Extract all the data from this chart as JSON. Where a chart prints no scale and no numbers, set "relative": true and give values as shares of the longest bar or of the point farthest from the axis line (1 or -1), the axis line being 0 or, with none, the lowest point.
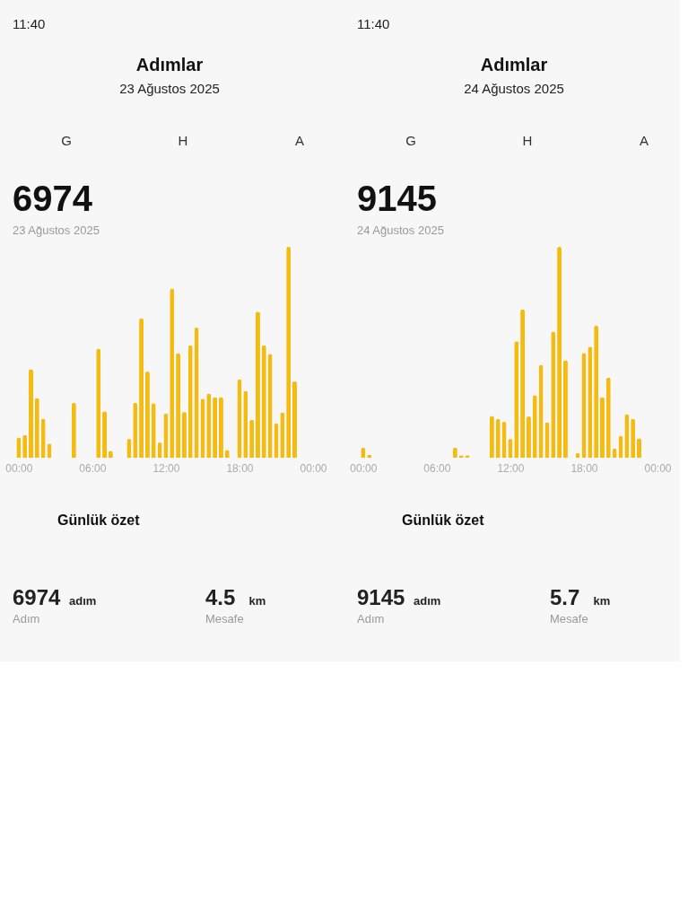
{
  "chart_data": [
    {
      "type": "bar",
      "title": "Adımlar",
      "subtitle": "23 Ağustos 2025",
      "relative": true,
      "x": [
        0,
        0.5,
        1,
        1.5,
        2,
        2.5,
        3,
        3.5,
        4,
        4.5,
        5,
        5.5,
        6,
        6.5,
        7,
        7.5,
        8,
        8.5,
        9,
        9.5,
        10,
        10.5,
        11,
        11.5,
        12,
        12.5,
        13,
        13.5,
        14,
        14.5,
        15,
        15.5,
        16,
        16.5,
        17,
        17.5,
        18,
        18.5,
        19,
        19.5,
        20,
        20.5,
        21,
        21.5,
        22,
        22.5
      ],
      "values": [
        0.096,
        0.107,
        0.42,
        0.283,
        0.185,
        0.067,
        null,
        null,
        null,
        0.26,
        null,
        null,
        null,
        0.517,
        0.22,
        0.033,
        null,
        null,
        0.089,
        0.26,
        0.661,
        0.409,
        0.259,
        0.072,
        0.209,
        0.802,
        0.496,
        0.217,
        0.533,
        0.617,
        0.28,
        0.304,
        0.287,
        0.287,
        0.037,
        null,
        0.372,
        0.317,
        0.18,
        0.693,
        0.533,
        0.493,
        0.163,
        0.215,
        1,
        0.363
      ],
      "color": "#f5bb0f",
      "xlim": [
        -0.5,
        24
      ],
      "xticks": [
        {
          "value": 0,
          "label": "00:00"
        },
        {
          "value": 6,
          "label": "06:00"
        },
        {
          "value": 12,
          "label": "12:00"
        },
        {
          "value": 18,
          "label": "18:00"
        },
        {
          "value": 24,
          "label": "00:00"
        }
      ],
      "annotations": [
        "11:40",
        "G",
        "H",
        "A",
        "6974",
        "23 Ağustos 2025",
        "Günlük özet",
        "6974",
        "adım",
        "Adım",
        "4.5",
        "km",
        "Mesafe"
      ]
    },
    {
      "type": "bar",
      "title": "Adımlar",
      "subtitle": "24 Ağustos 2025",
      "relative": true,
      "x": [
        0,
        0.5,
        1,
        1.5,
        2,
        2.5,
        3,
        3.5,
        4,
        4.5,
        5,
        5.5,
        6,
        6.5,
        7,
        7.5,
        8,
        8.5,
        9,
        9.5,
        10,
        10.5,
        11,
        11.5,
        12,
        12.5,
        13,
        13.5,
        14,
        14.5,
        15,
        15.5,
        16,
        16.5,
        17,
        17.5,
        18,
        18.5,
        19,
        19.5,
        20,
        20.5,
        21,
        21.5,
        22,
        22.5
      ],
      "values": [
        0.048,
        0.014,
        null,
        null,
        null,
        null,
        null,
        null,
        null,
        null,
        null,
        null,
        null,
        null,
        null,
        0.048,
        0.012,
        0.012,
        null,
        null,
        null,
        0.198,
        0.184,
        0.17,
        0.089,
        0.552,
        0.703,
        0.196,
        0.297,
        0.44,
        0.168,
        0.598,
        1,
        0.463,
        null,
        0.022,
        0.497,
        0.527,
        0.626,
        0.287,
        0.38,
        0.044,
        0.103,
        0.206,
        0.184,
        0.093
      ],
      "color": "#f5bb0f",
      "xlim": [
        -0.5,
        24
      ],
      "xticks": [
        {
          "value": 0,
          "label": "00:00"
        },
        {
          "value": 6,
          "label": "06:00"
        },
        {
          "value": 12,
          "label": "12:00"
        },
        {
          "value": 18,
          "label": "18:00"
        },
        {
          "value": 24,
          "label": "00:00"
        }
      ],
      "annotations": [
        "11:40",
        "G",
        "H",
        "A",
        "9145",
        "24 Ağustos 2025",
        "Günlük özet",
        "9145",
        "adım",
        "Adım",
        "5.7",
        "km",
        "Mesafe"
      ]
    }
  ]
}
